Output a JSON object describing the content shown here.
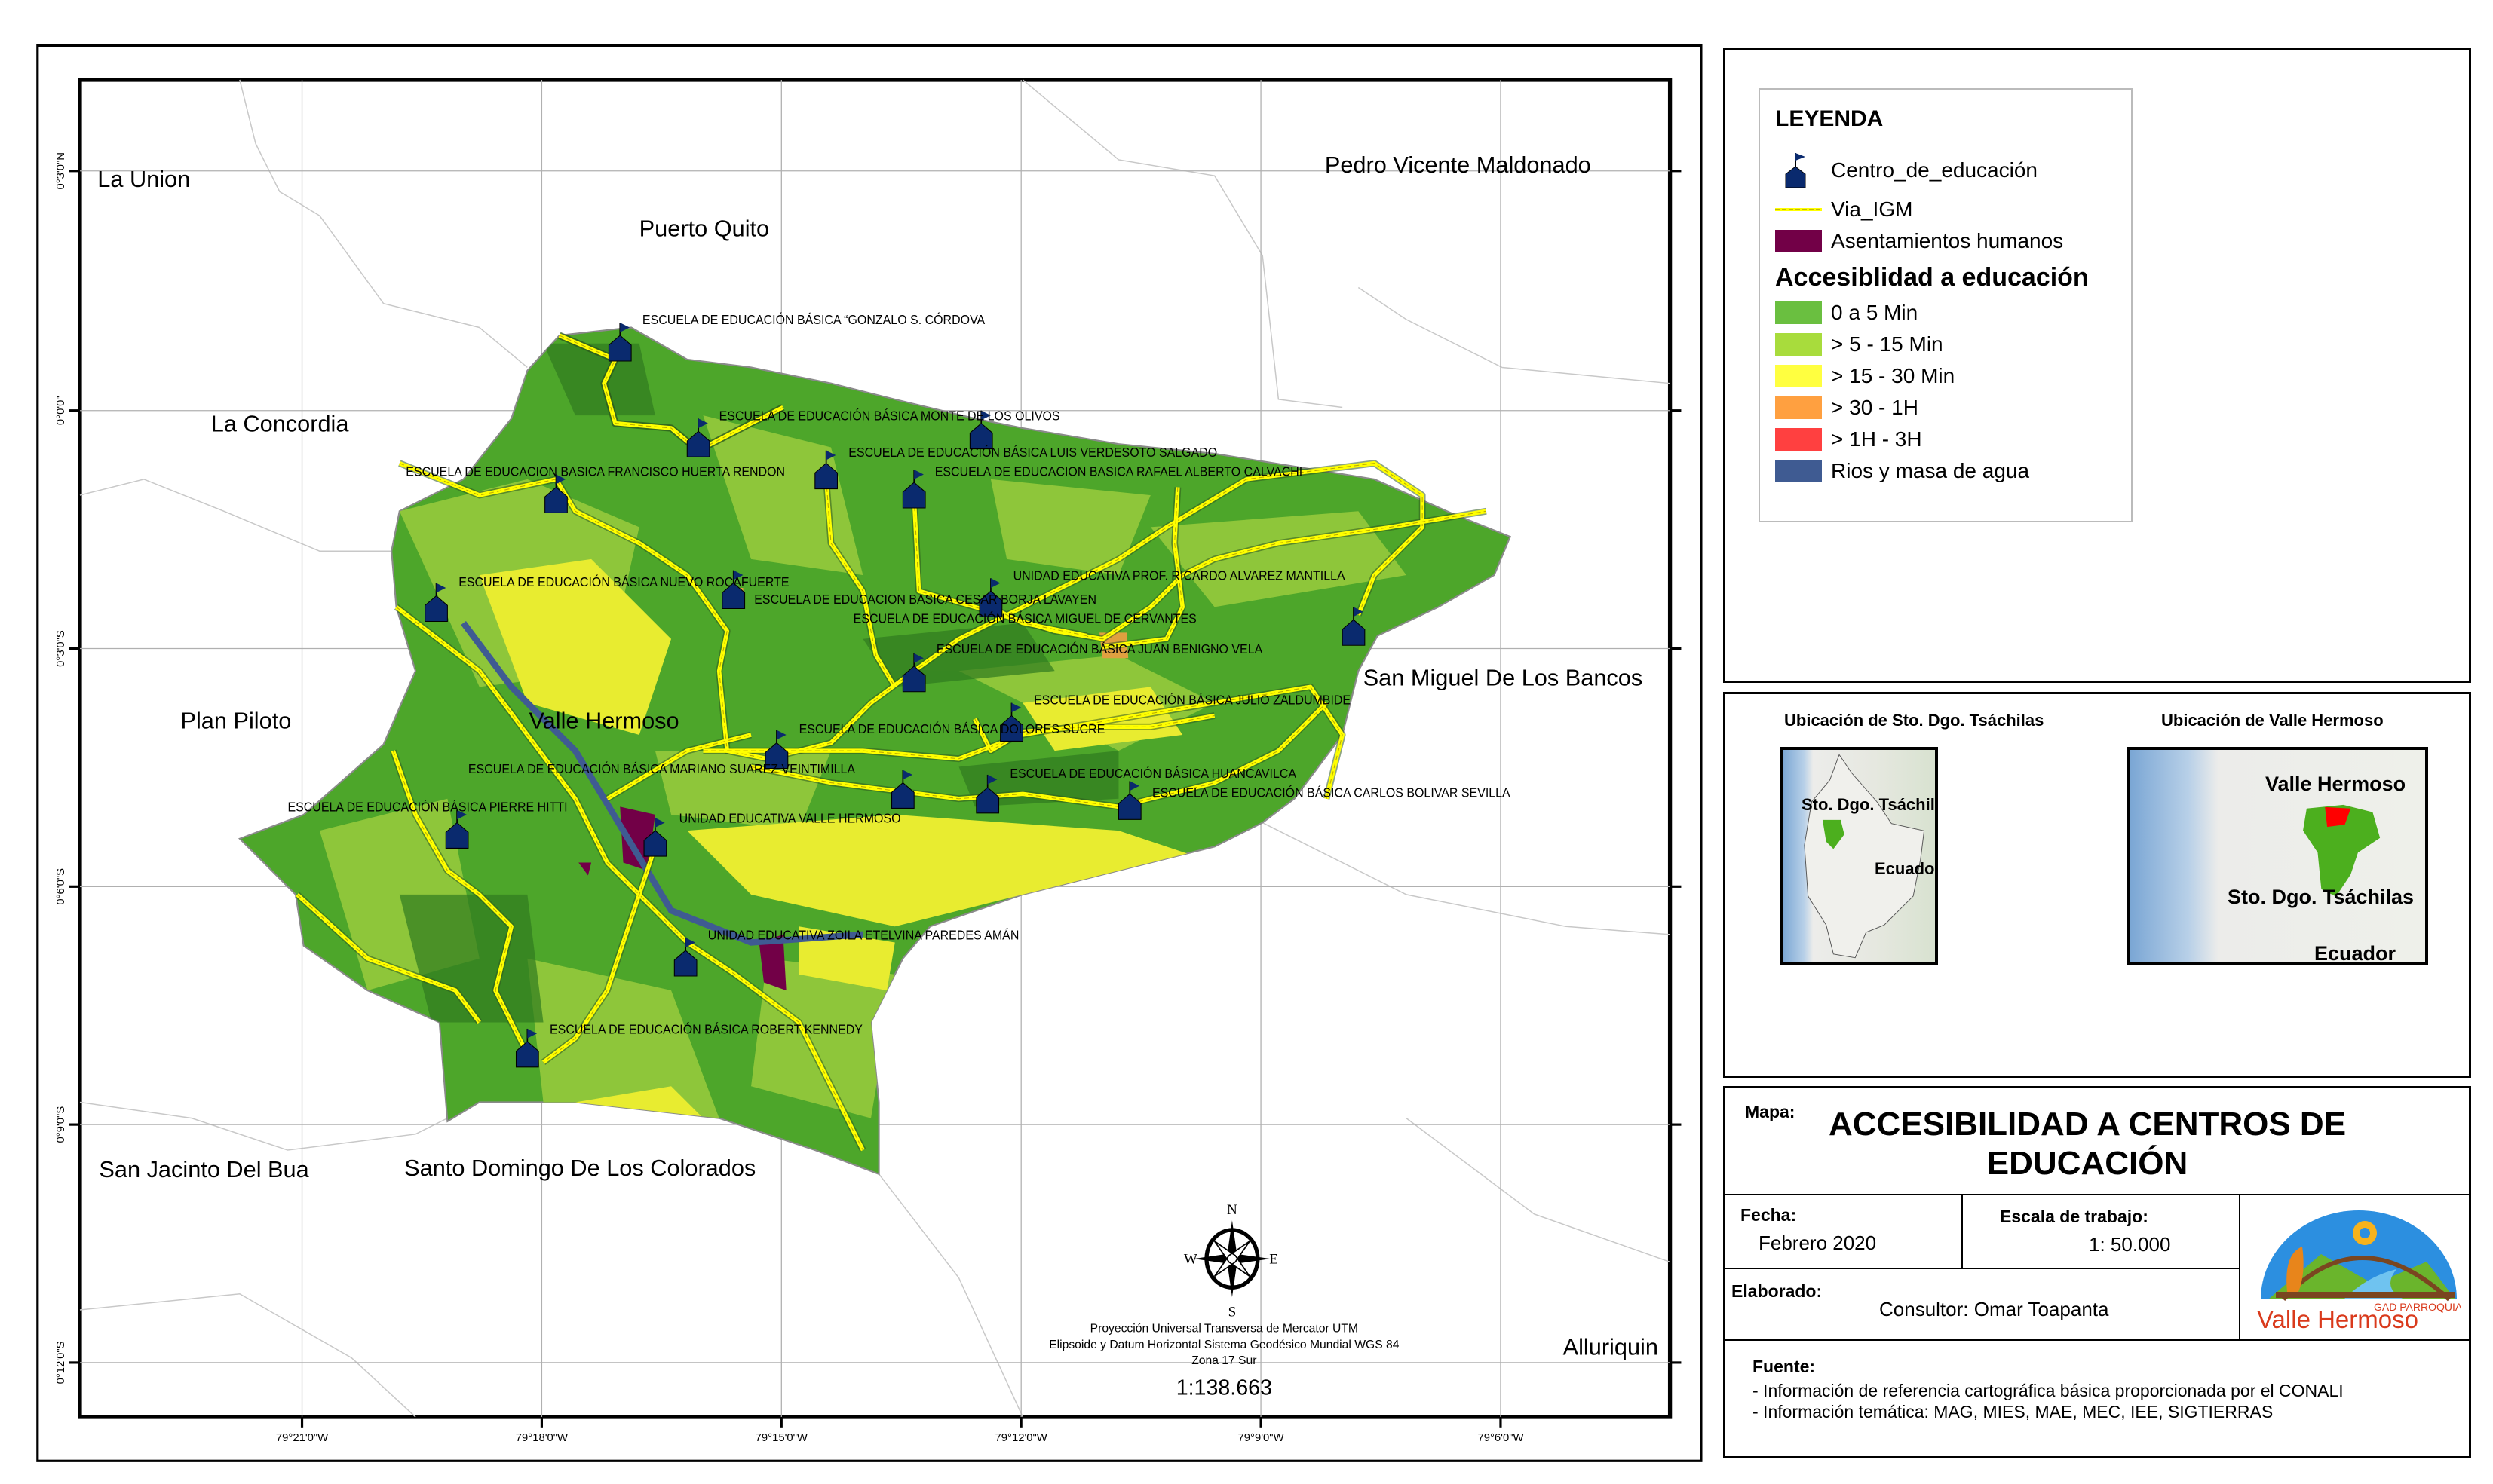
{
  "map": {
    "place_labels": [
      "La Union",
      "Puerto Quito",
      "Pedro Vicente Maldonado",
      "La Concordia",
      "Plan Piloto",
      "Valle Hermoso",
      "San Miguel De Los Bancos",
      "San Jacinto Del Bua",
      "Santo Domingo De Los Colorados",
      "Alluriquin"
    ],
    "schools": [
      "ESCUELA DE EDUCACIÓN BÁSICA “GONZALO S. CÓRDOVA",
      "ESCUELA DE EDUCACIÓN BÁSICA  MONTE DE LOS OLIVOS",
      "ESCUELA DE EDUCACIÓN BÁSICA LUIS VERDESOTO SALGADO",
      "ESCUELA DE EDUCACION BASICA FRANCISCO HUERTA RENDON",
      "ESCUELA DE EDUCACION BASICA RAFAEL ALBERTO CALVACHI",
      "ESCUELA DE EDUCACIÓN BÁSICA NUEVO ROCAFUERTE",
      "UNIDAD EDUCATIVA PROF. RICARDO ALVAREZ MANTILLA",
      "ESCUELA DE EDUCACION BASICA CESAR BORJA LAVAYEN",
      "ESCUELA DE EDUCACIÓN BÁSICA MIGUEL DE CERVANTES",
      "ESCUELA DE EDUCACIÓN BÁSICA JUAN BENIGNO VELA",
      "ESCUELA DE EDUCACIÓN BÁSICA JULIO ZALDUMBIDE",
      "ESCUELA DE EDUCACIÓN BÁSICA DOLORES SUCRE",
      "ESCUELA DE EDUCACIÓN BÁSICA MARIANO SUAREZ VEINTIMILLA",
      "ESCUELA DE EDUCACIÓN BÁSICA HUANCAVILCA",
      "ESCUELA DE EDUCACIÓN BÁSICA  CARLOS BOLIVAR SEVILLA",
      "ESCUELA DE EDUCACIÓN BÁSICA PIERRE HITTI",
      "UNIDAD EDUCATIVA VALLE HERMOSO",
      "UNIDAD EDUCATIVA ZOILA ETELVINA PAREDES AMÁN",
      "ESCUELA DE EDUCACIÓN BÁSICA ROBERT KENNEDY"
    ],
    "lat_ticks": [
      "0°3'0\"N",
      "0°0'0\"",
      "0°3'0\"S",
      "0°6'0\"S",
      "0°9'0\"S",
      "0°12'0\"S"
    ],
    "lon_ticks": [
      "79°21'0\"W",
      "79°18'0\"W",
      "79°15'0\"W",
      "79°12'0\"W",
      "79°9'0\"W",
      "79°6'0\"W"
    ],
    "north_arrow": {
      "n": "N",
      "s": "S",
      "e": "E",
      "w": "W"
    },
    "projection": [
      "Proyección Universal Transversa de Mercator UTM",
      "Elipsoide y Datum Horizontal Sistema Geodésico Mundial WGS 84",
      "Zona 17 Sur"
    ],
    "scale": "1:138.663"
  },
  "legend": {
    "title": "LEYENDA",
    "school": "Centro_de_educación",
    "road": "Via_IGM",
    "settlements": "Asentamientos humanos",
    "access_title": "Accesiblidad a educación",
    "classes": [
      {
        "label": "0 a 5 Min",
        "color": "#6abf40"
      },
      {
        "label": "> 5 - 15 Min",
        "color": "#a8dc3c"
      },
      {
        "label": "> 15 - 30 Min",
        "color": "#ffff40"
      },
      {
        "label": "> 30 - 1H",
        "color": "#ffa040"
      },
      {
        "label": "> 1H - 3H",
        "color": "#ff4040"
      },
      {
        "label": "Rios y masa de agua",
        "color": "#3f5b92"
      }
    ],
    "colors": {
      "school": "#0a2a6e",
      "road": "#ffff00",
      "settlements": "#720047"
    }
  },
  "insets": [
    {
      "title": "Ubicación de Sto. Dgo. Tsáchilas",
      "labels": [
        "Sto. Dgo. Tsáchilas",
        "Ecuador"
      ]
    },
    {
      "title": "Ubicación de Valle Hermoso",
      "labels": [
        "Valle Hermoso",
        "Sto. Dgo. Tsáchilas",
        "Ecuador"
      ]
    }
  ],
  "title_block": {
    "map_label": "Mapa:",
    "title": "ACCESIBILIDAD A CENTROS DE EDUCACIÓN",
    "date_label": "Fecha:",
    "date": "Febrero 2020",
    "scale_label": "Escala de trabajo:",
    "scale": "1: 50.000",
    "author_label": "Elaborado:",
    "author": "Consultor: Omar Toapanta",
    "source_label": "Fuente:",
    "sources": [
      "- Información de referencia cartográfica básica proporcionada por el CONALI",
      "- Información temática: MAG, MIES, MAE, MEC, IEE, SIGTIERRAS"
    ],
    "logo_text": "Valle Hermoso",
    "logo_subtext": "GAD PARROQUIAL"
  }
}
